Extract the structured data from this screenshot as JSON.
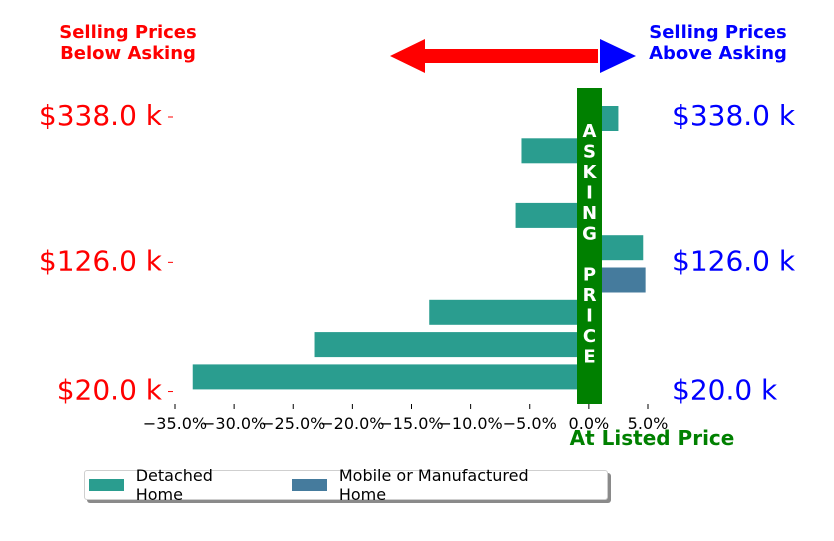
{
  "chart_data": {
    "type": "bar",
    "orientation": "horizontal",
    "xlim": [
      -37,
      8
    ],
    "x_ticks": [
      -35,
      -30,
      -25,
      -20,
      -15,
      -10,
      -5,
      0,
      5
    ],
    "x_tick_labels": [
      "−35.0%",
      "−30.0%",
      "−25.0%",
      "−20.0%",
      "−15.0%",
      "−10.0%",
      "−5.0%",
      "0.0%",
      "5.0%"
    ],
    "rows": 9,
    "bars": [
      {
        "series": "Detached Home",
        "row": 0,
        "value": 2.5
      },
      {
        "series": "Detached Home",
        "row": 1,
        "value": -5.7
      },
      {
        "series": "Detached Home",
        "row": 2,
        "value": 1.0
      },
      {
        "series": "Detached Home",
        "row": 3,
        "value": -6.2
      },
      {
        "series": "Detached Home",
        "row": 4,
        "value": 4.6
      },
      {
        "series": "Mobile or Manufactured Home",
        "row": 5,
        "value": 4.8
      },
      {
        "series": "Detached Home",
        "row": 6,
        "value": -13.5
      },
      {
        "series": "Detached Home",
        "row": 7,
        "value": -23.2
      },
      {
        "series": "Detached Home",
        "row": 8,
        "value": -33.5
      }
    ],
    "price_labels": [
      {
        "row": 0,
        "text": "$338.0 k"
      },
      {
        "row": 4.5,
        "text": "$126.0 k"
      },
      {
        "row": 8.5,
        "text": "$20.0 k"
      }
    ],
    "asking_band_text": [
      "A",
      "S",
      "K",
      "I",
      "N",
      "G",
      "",
      "P",
      "R",
      "I",
      "C",
      "E"
    ],
    "listed_label": "At Listed Price",
    "left_title": [
      "Selling Prices",
      "Below Asking"
    ],
    "right_title": [
      "Selling Prices",
      "Above Asking"
    ],
    "colors": {
      "detached": "#2a9d8f",
      "mobile": "#457b9d",
      "band": "#008000",
      "below": "#ff0000",
      "above": "#0000ff",
      "listed": "#008000"
    },
    "legend": {
      "placement": "bottom-left",
      "items": [
        {
          "label": "Detached Home",
          "color": "#2a9d8f"
        },
        {
          "label": "Mobile or Manufactured Home",
          "color": "#457b9d"
        }
      ]
    }
  }
}
